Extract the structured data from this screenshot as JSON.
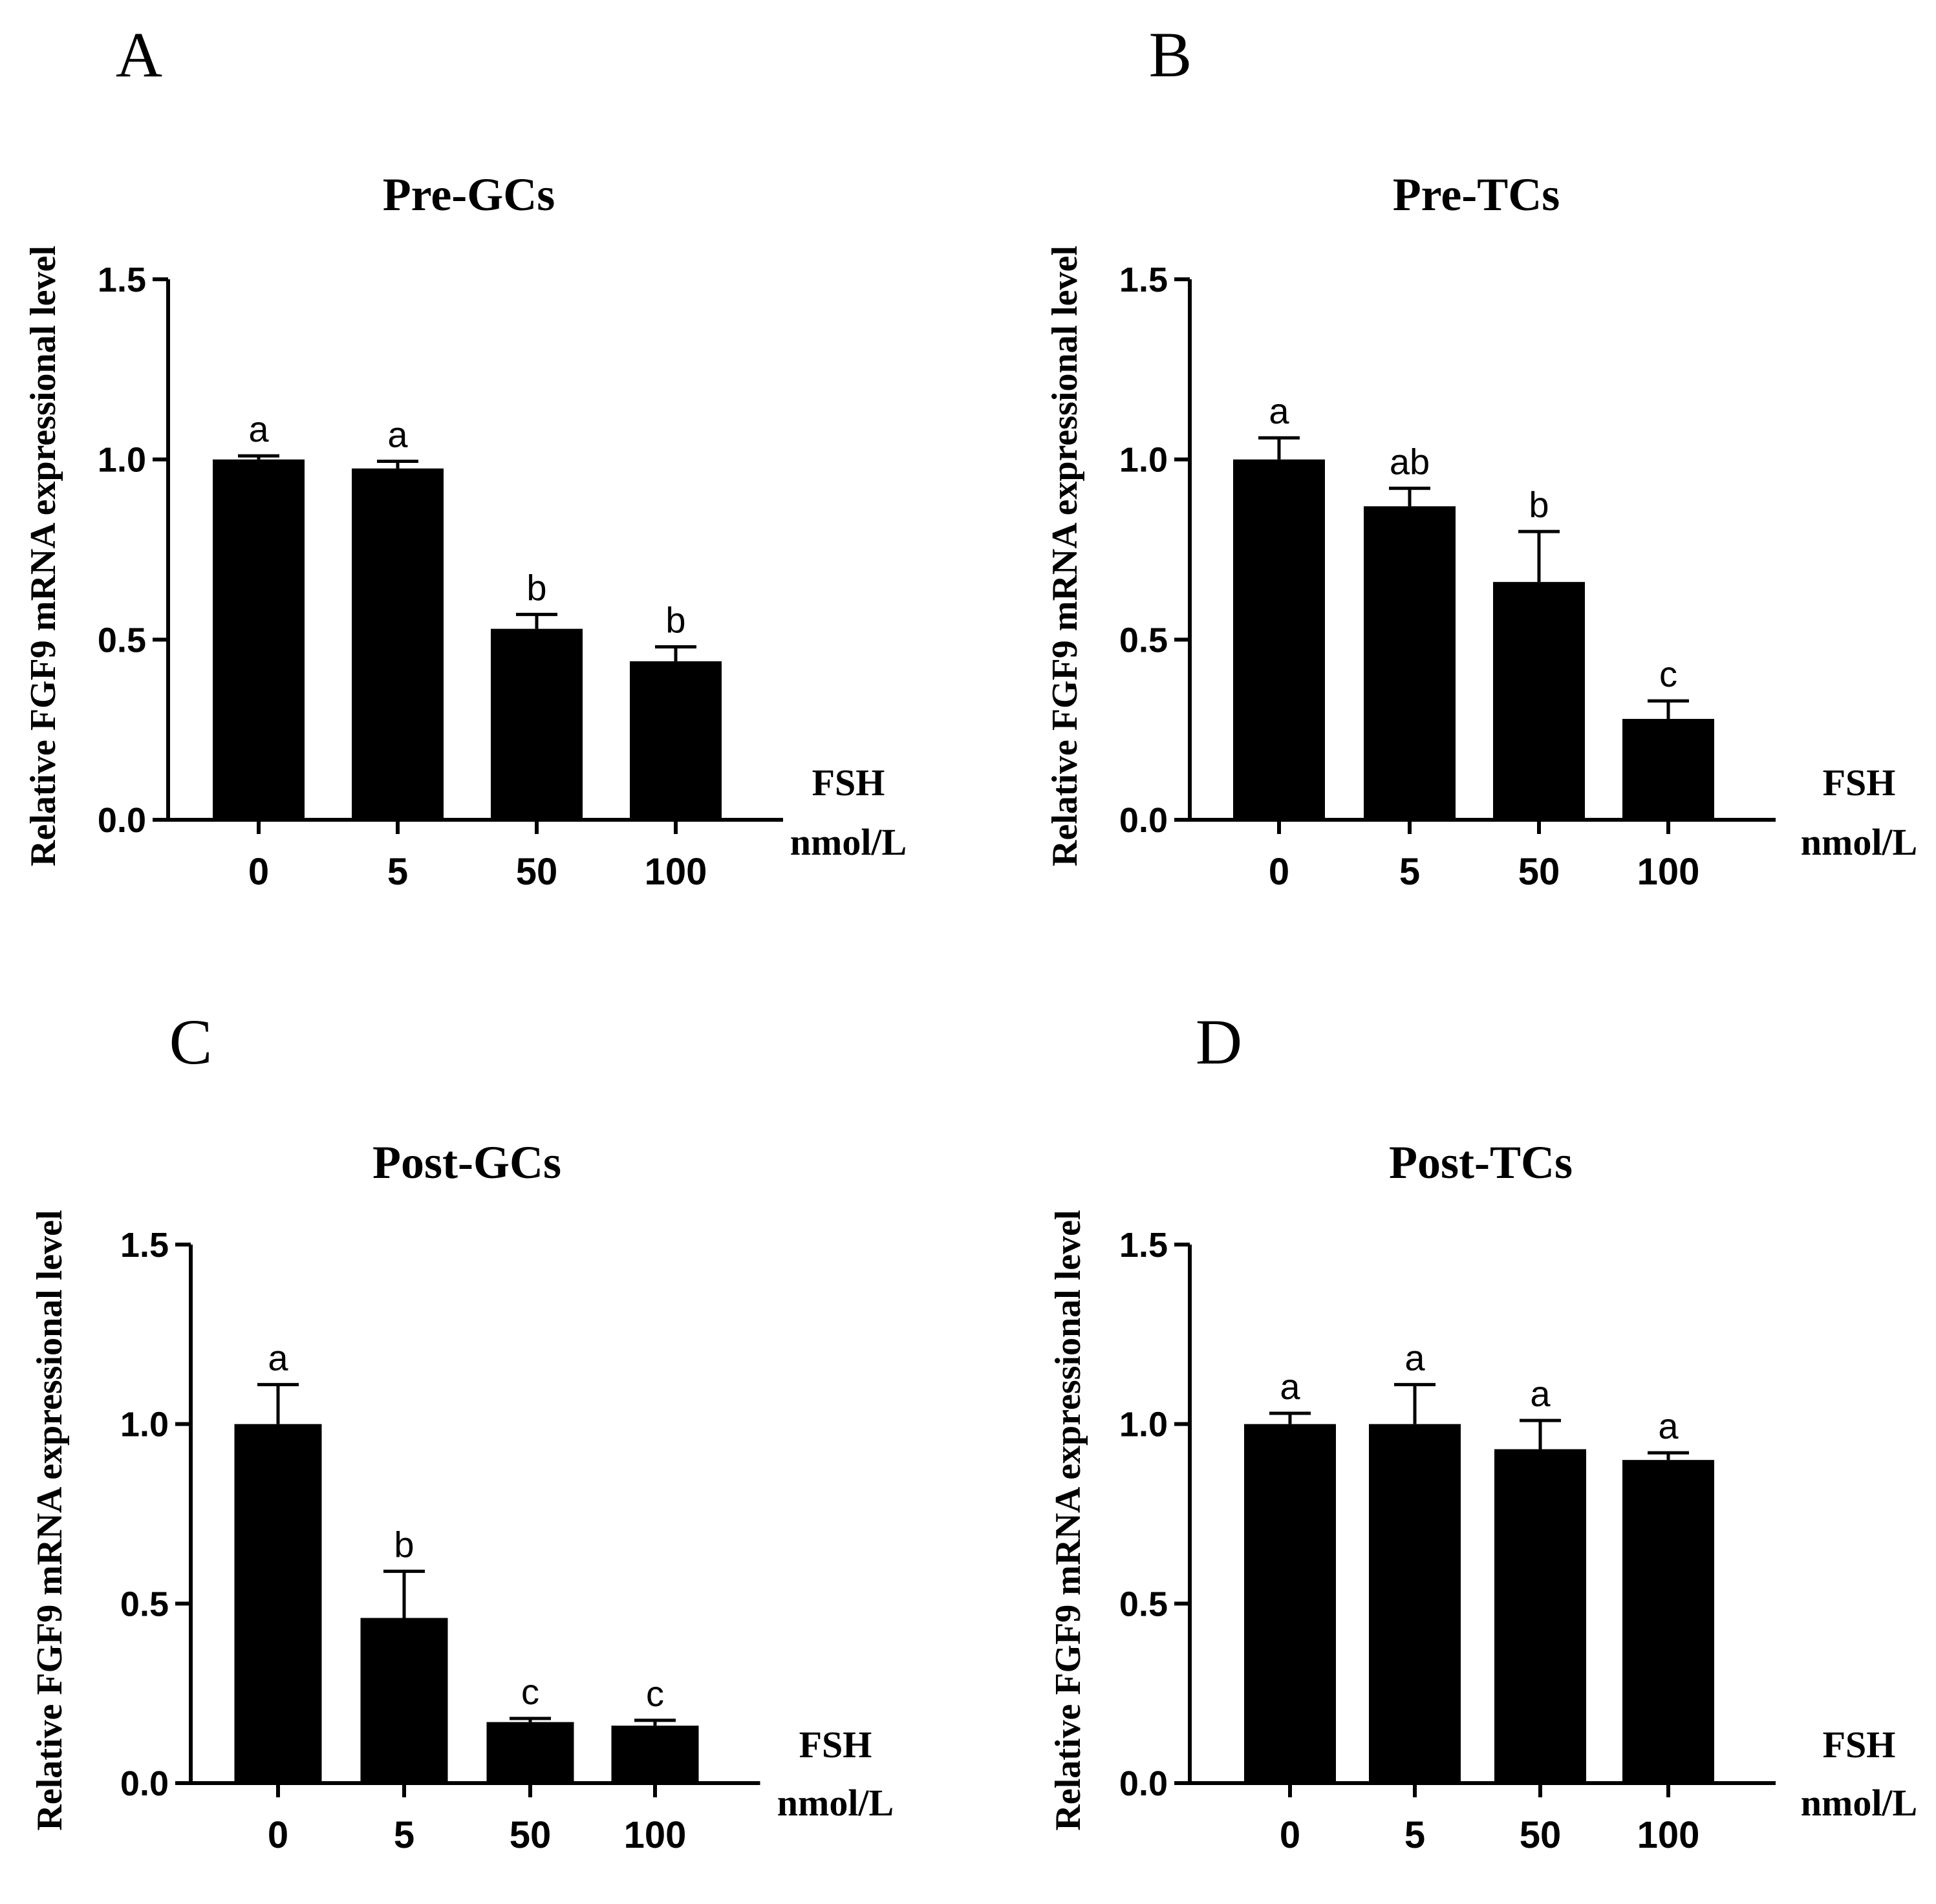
{
  "chart_data": [
    {
      "panel": "A",
      "type": "bar",
      "title": "Pre-GCs",
      "ylabel": "Relative FGF9 mRNA expressional level",
      "xlabel": [
        "FSH",
        "nmol/L"
      ],
      "ylim": [
        0,
        1.5
      ],
      "yticks": [
        "0.0",
        "0.5",
        "1.0",
        "1.5"
      ],
      "categories": [
        "0",
        "5",
        "50",
        "100"
      ],
      "values": [
        1.0,
        0.975,
        0.53,
        0.44
      ],
      "errors": [
        0.01,
        0.02,
        0.04,
        0.04
      ],
      "letters": [
        "a",
        "a",
        "b",
        "b"
      ],
      "color": "#000000"
    },
    {
      "panel": "B",
      "type": "bar",
      "title": "Pre-TCs",
      "ylabel": "Relative FGF9 mRNA expressional level",
      "xlabel": [
        "FSH",
        "nmol/L"
      ],
      "ylim": [
        0,
        1.5
      ],
      "yticks": [
        "0.0",
        "0.5",
        "1.0",
        "1.5"
      ],
      "categories": [
        "0",
        "5",
        "50",
        "100"
      ],
      "values": [
        1.0,
        0.87,
        0.66,
        0.28
      ],
      "errors": [
        0.06,
        0.05,
        0.14,
        0.05
      ],
      "letters": [
        "a",
        "ab",
        "b",
        "c"
      ],
      "color": "#000000"
    },
    {
      "panel": "C",
      "type": "bar",
      "title": "Post-GCs",
      "ylabel": "Relative FGF9 mRNA expressional level",
      "xlabel": [
        "FSH",
        "nmol/L"
      ],
      "ylim": [
        0,
        1.5
      ],
      "yticks": [
        "0.0",
        "0.5",
        "1.0",
        "1.5"
      ],
      "categories": [
        "0",
        "5",
        "50",
        "100"
      ],
      "values": [
        1.0,
        0.46,
        0.17,
        0.16
      ],
      "errors": [
        0.11,
        0.13,
        0.01,
        0.015
      ],
      "letters": [
        "a",
        "b",
        "c",
        "c"
      ],
      "color": "#000000"
    },
    {
      "panel": "D",
      "type": "bar",
      "title": "Post-TCs",
      "ylabel": "Relative FGF9 mRNA expressional level",
      "xlabel": [
        "FSH",
        "nmol/L"
      ],
      "ylim": [
        0,
        1.5
      ],
      "yticks": [
        "0.0",
        "0.5",
        "1.0",
        "1.5"
      ],
      "categories": [
        "0",
        "5",
        "50",
        "100"
      ],
      "values": [
        1.0,
        1.0,
        0.93,
        0.9
      ],
      "errors": [
        0.03,
        0.11,
        0.08,
        0.02
      ],
      "letters": [
        "a",
        "a",
        "a",
        "a"
      ],
      "color": "#000000"
    }
  ]
}
